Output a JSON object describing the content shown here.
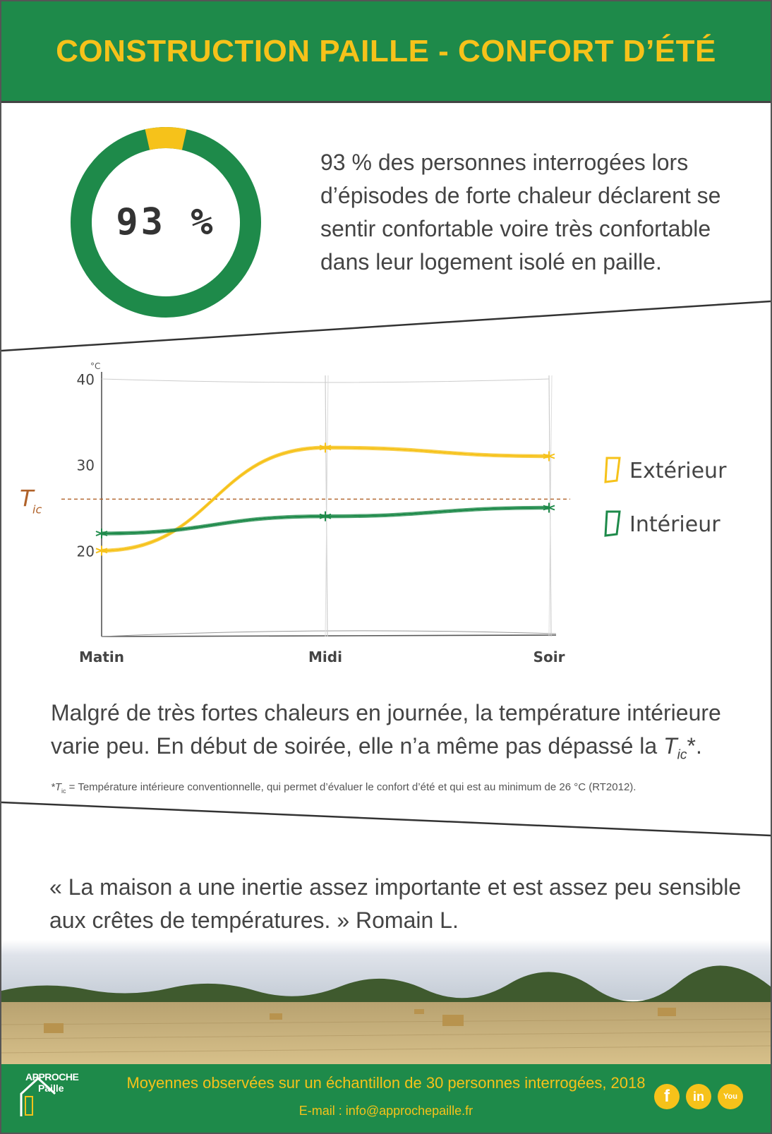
{
  "header": {
    "title": "CONSTRUCTION PAILLE - CONFORT D’ÉTÉ"
  },
  "stat": {
    "value_label": "93 %",
    "percent": 93
  },
  "intro_lines": [
    "93 % des personnes interrogées lors",
    "d’épisodes de forte chaleur déclarent se",
    "sentir confortable voire très confortable",
    "dans leur logement isolé en paille."
  ],
  "chart_data": {
    "type": "line",
    "categories": [
      "Matin",
      "Midi",
      "Soir"
    ],
    "series": [
      {
        "name": "Extérieur",
        "values": [
          20,
          32,
          31
        ],
        "color": "#f6c21a"
      },
      {
        "name": "Intérieur",
        "values": [
          22,
          24,
          25
        ],
        "color": "#1e8a4a"
      }
    ],
    "yunit": "°C",
    "yticks": [
      20,
      30,
      40
    ],
    "ylim": [
      10,
      40
    ],
    "reference_line": {
      "label_main": "T",
      "label_sub": "ic",
      "value": 26,
      "color": "#b0622a"
    },
    "legend_position": "right",
    "grid": true
  },
  "conclusion": {
    "line1": "Malgré de très fortes chaleurs en journée, la température intérieure",
    "line2": "varie peu. En début de soirée, elle n’a même pas dépassé la ",
    "tic_main": "T",
    "tic_sub": "ic",
    "end": "*."
  },
  "footnote": {
    "prefix": "*T",
    "sub": "ic",
    "text": " = Température intérieure conventionnelle, qui permet d’évaluer le confort d’été et qui est au minimum de 26 °C (RT2012)."
  },
  "quote_lines": [
    " « La maison a une inertie assez importante et est assez peu sensible",
    "aux crêtes de températures. » Romain L."
  ],
  "footer": {
    "logo_line1": "APPROCHE",
    "logo_line2": "Paille",
    "main": "Moyennes observées sur un échantillon de 30 personnes interrogées, 2018",
    "email": "E-mail : info@approchepaille.fr",
    "social": [
      {
        "icon": "facebook-icon",
        "glyph": "f"
      },
      {
        "icon": "linkedin-icon",
        "glyph": "in"
      },
      {
        "icon": "youtube-icon",
        "glyph": "You"
      }
    ]
  },
  "colors": {
    "green": "#1e8a4a",
    "yellow": "#f6c21a",
    "reference": "#b0622a"
  }
}
